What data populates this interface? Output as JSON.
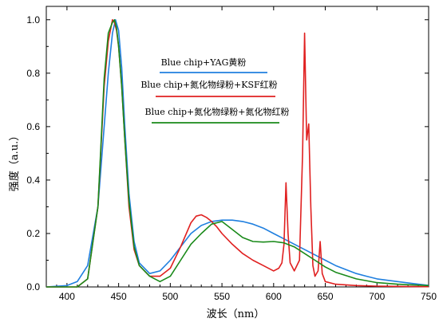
{
  "chart_data": {
    "type": "line",
    "xlabel": "波长（nm）",
    "ylabel": "强度（a.u.）",
    "xlim": [
      380,
      750
    ],
    "ylim": [
      0.0,
      1.05
    ],
    "xticks": [
      400,
      450,
      500,
      550,
      600,
      650,
      700,
      750
    ],
    "yticks": [
      0.0,
      0.2,
      0.4,
      0.6,
      0.8,
      1.0
    ],
    "xtick_labels": [
      "400",
      "450",
      "500",
      "550",
      "600",
      "650",
      "700",
      "750"
    ],
    "ytick_labels": [
      "0.0",
      "0.2",
      "0.4",
      "0.6",
      "0.8",
      "1.0"
    ],
    "grid": false,
    "legend_position": "top-center",
    "series": [
      {
        "name": "Blue chip+YAG黄粉",
        "color": "#1f7fdf",
        "x": [
          380,
          400,
          410,
          420,
          430,
          436,
          440,
          444,
          447,
          450,
          453,
          456,
          460,
          465,
          470,
          480,
          490,
          500,
          510,
          520,
          530,
          540,
          550,
          560,
          570,
          580,
          590,
          600,
          610,
          620,
          630,
          640,
          650,
          660,
          670,
          680,
          690,
          700,
          720,
          740,
          750
        ],
        "y": [
          0.0,
          0.005,
          0.02,
          0.08,
          0.3,
          0.6,
          0.8,
          0.95,
          1.0,
          0.96,
          0.82,
          0.6,
          0.35,
          0.17,
          0.09,
          0.05,
          0.06,
          0.1,
          0.15,
          0.2,
          0.23,
          0.245,
          0.25,
          0.25,
          0.245,
          0.235,
          0.22,
          0.2,
          0.18,
          0.16,
          0.14,
          0.12,
          0.1,
          0.08,
          0.065,
          0.05,
          0.04,
          0.03,
          0.02,
          0.01,
          0.006
        ]
      },
      {
        "name": "Blue chip+氮化物绿粉+KSF红粉",
        "color": "#e02020",
        "x": [
          380,
          410,
          420,
          430,
          436,
          440,
          444,
          446,
          448,
          450,
          453,
          456,
          460,
          465,
          470,
          480,
          490,
          500,
          510,
          520,
          525,
          530,
          535,
          540,
          545,
          550,
          560,
          570,
          580,
          590,
          600,
          605,
          608,
          610,
          612,
          614,
          616,
          620,
          625,
          628,
          630,
          632,
          634,
          636,
          638,
          640,
          643,
          645,
          647,
          650,
          660,
          680,
          700,
          720,
          750
        ],
        "y": [
          0.0,
          0.0,
          0.03,
          0.3,
          0.75,
          0.92,
          1.0,
          0.99,
          0.96,
          0.9,
          0.75,
          0.55,
          0.3,
          0.14,
          0.08,
          0.04,
          0.04,
          0.07,
          0.15,
          0.24,
          0.265,
          0.27,
          0.26,
          0.245,
          0.225,
          0.2,
          0.16,
          0.125,
          0.1,
          0.08,
          0.06,
          0.07,
          0.09,
          0.16,
          0.39,
          0.2,
          0.09,
          0.06,
          0.1,
          0.5,
          0.95,
          0.55,
          0.61,
          0.3,
          0.08,
          0.04,
          0.06,
          0.17,
          0.05,
          0.02,
          0.01,
          0.005,
          0.003,
          0.002,
          0.001
        ]
      },
      {
        "name": "Blue chip+氮化物绿粉+氮化物红粉",
        "color": "#1a8a1a",
        "x": [
          380,
          410,
          420,
          430,
          436,
          440,
          444,
          446,
          448,
          450,
          453,
          456,
          460,
          465,
          470,
          480,
          490,
          500,
          510,
          520,
          530,
          540,
          550,
          560,
          570,
          580,
          590,
          600,
          610,
          620,
          630,
          640,
          650,
          660,
          680,
          700,
          720,
          750
        ],
        "y": [
          0.0,
          0.0,
          0.03,
          0.3,
          0.78,
          0.95,
          0.99,
          1.0,
          0.97,
          0.9,
          0.75,
          0.55,
          0.32,
          0.15,
          0.08,
          0.04,
          0.02,
          0.04,
          0.1,
          0.16,
          0.2,
          0.235,
          0.245,
          0.215,
          0.185,
          0.17,
          0.168,
          0.17,
          0.165,
          0.15,
          0.125,
          0.1,
          0.075,
          0.055,
          0.03,
          0.016,
          0.01,
          0.005
        ]
      }
    ]
  }
}
